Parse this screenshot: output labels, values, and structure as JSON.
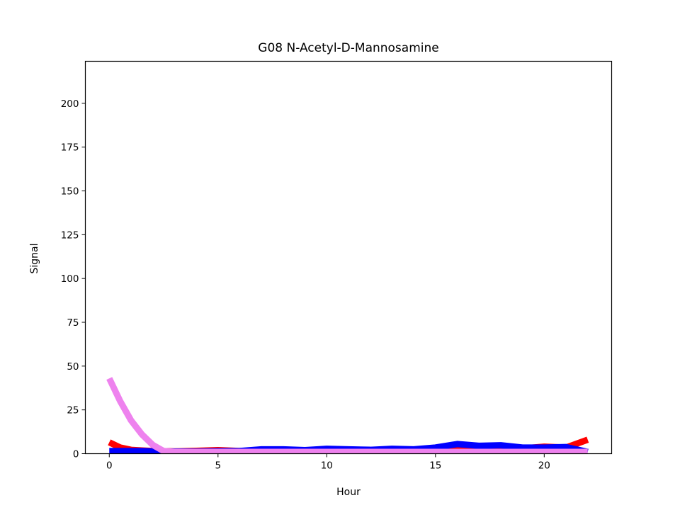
{
  "chart_data": {
    "type": "line",
    "title": "G08 N-Acetyl-D-Mannosamine",
    "xlabel": "Hour",
    "ylabel": "Signal",
    "xlim": [
      -1.1,
      23.1
    ],
    "ylim": [
      0,
      224
    ],
    "xticks": [
      0,
      5,
      10,
      15,
      20
    ],
    "yticks": [
      0,
      25,
      50,
      75,
      100,
      125,
      150,
      175,
      200
    ],
    "grid": false,
    "legend": "none",
    "series": [
      {
        "color": "#ff0000",
        "x": [
          0,
          0.5,
          1,
          1.5,
          2,
          2.5,
          3,
          4,
          5,
          6,
          7,
          8,
          9,
          10,
          11,
          12,
          13,
          14,
          15,
          16,
          17,
          18,
          19,
          20,
          21,
          22
        ],
        "y": [
          6.5,
          3.5,
          2.2,
          1.8,
          1.5,
          1.4,
          1.3,
          1.6,
          2,
          1.5,
          1.8,
          1.8,
          1.5,
          1.8,
          2,
          1.8,
          1.8,
          1.8,
          2,
          2.5,
          2.3,
          2.5,
          3,
          4,
          3.5,
          8
        ]
      },
      {
        "color": "#0000ff",
        "x": [
          0,
          0.5,
          1,
          1.5,
          2,
          2.5,
          3,
          4,
          5,
          6,
          7,
          8,
          9,
          10,
          11,
          12,
          13,
          14,
          15,
          16,
          17,
          18,
          19,
          20,
          21,
          22
        ],
        "y": [
          1.5,
          1.5,
          1.5,
          1.5,
          1.3,
          1.3,
          1.2,
          1.2,
          1.4,
          1.5,
          2.5,
          2.5,
          2,
          2.8,
          2.5,
          2.2,
          2.8,
          2.5,
          3.5,
          5.5,
          4.5,
          4.8,
          3.5,
          3.5,
          3.8,
          1
        ]
      },
      {
        "color": "#ee82ee",
        "x": [
          0,
          0.5,
          1,
          1.5,
          2,
          2.5,
          3,
          4,
          5,
          6,
          7,
          8,
          9,
          10,
          11,
          12,
          13,
          14,
          15,
          16,
          17,
          18,
          19,
          20,
          21,
          22
        ],
        "y": [
          43,
          30,
          19,
          11,
          5,
          1.5,
          1,
          1,
          1,
          1,
          1,
          1,
          1,
          1,
          1,
          1,
          1,
          1,
          1,
          1,
          1,
          1,
          1,
          1,
          1,
          1
        ]
      }
    ]
  }
}
